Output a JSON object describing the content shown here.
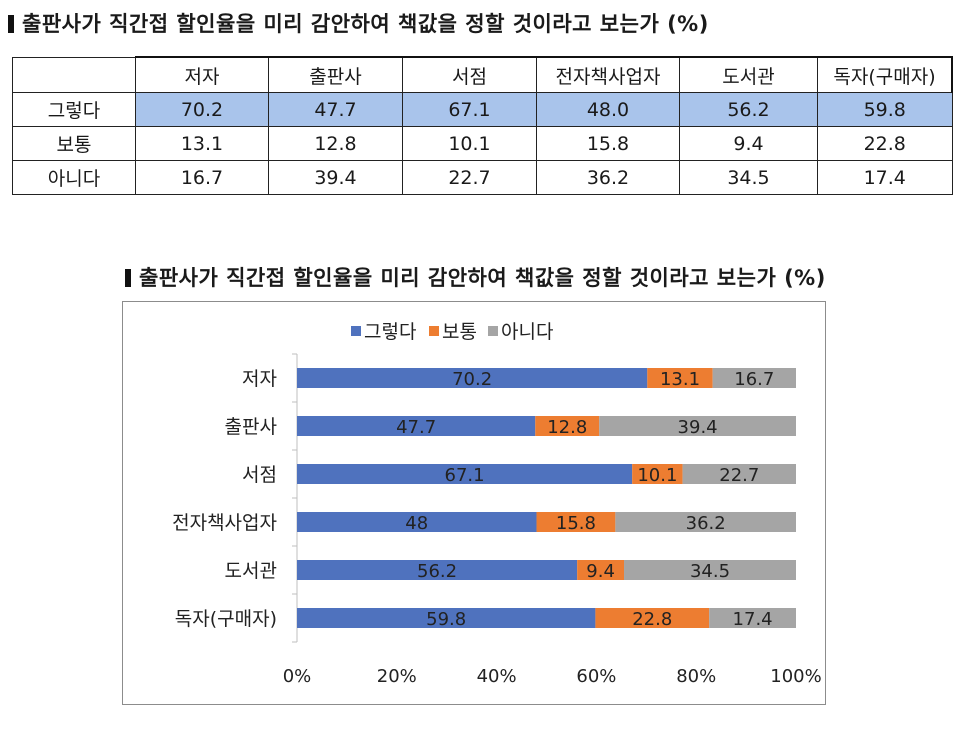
{
  "heading_top": "출판사가 직간접 할인율을 미리 감안하여 책값을 정할 것이라고 보는가 (%)",
  "heading_chart": "출판사가 직간접 할인율을 미리 감안하여 책값을 정할 것이라고 보는가 (%)",
  "table": {
    "columns": [
      "저자",
      "출판사",
      "서점",
      "전자책사업자",
      "도서관",
      "독자(구매자)"
    ],
    "rows": [
      {
        "label": "그렇다",
        "values": [
          "70.2",
          "47.7",
          "67.1",
          "48.0",
          "56.2",
          "59.8"
        ]
      },
      {
        "label": "보통",
        "values": [
          "13.1",
          "12.8",
          "10.1",
          "15.8",
          "9.4",
          "22.8"
        ]
      },
      {
        "label": "아니다",
        "values": [
          "16.7",
          "39.4",
          "22.7",
          "36.2",
          "34.5",
          "17.4"
        ]
      }
    ]
  },
  "chart_data": {
    "type": "bar",
    "orientation": "horizontal",
    "stacked": "percent",
    "categories": [
      "저자",
      "출판사",
      "서점",
      "전자책사업자",
      "도서관",
      "독자(구매자)"
    ],
    "series": [
      {
        "name": "그렇다",
        "color": "#4f72be",
        "values": [
          70.2,
          47.7,
          67.1,
          48,
          56.2,
          59.8
        ]
      },
      {
        "name": "보통",
        "color": "#ed7d31",
        "values": [
          13.1,
          12.8,
          10.1,
          15.8,
          9.4,
          22.8
        ]
      },
      {
        "name": "아니다",
        "color": "#a5a5a5",
        "values": [
          16.7,
          39.4,
          22.7,
          36.2,
          34.5,
          17.4
        ]
      }
    ],
    "x_ticks": [
      "0%",
      "20%",
      "40%",
      "60%",
      "80%",
      "100%"
    ],
    "xlim": [
      0,
      100
    ],
    "legend_position": "top",
    "grid": false
  }
}
